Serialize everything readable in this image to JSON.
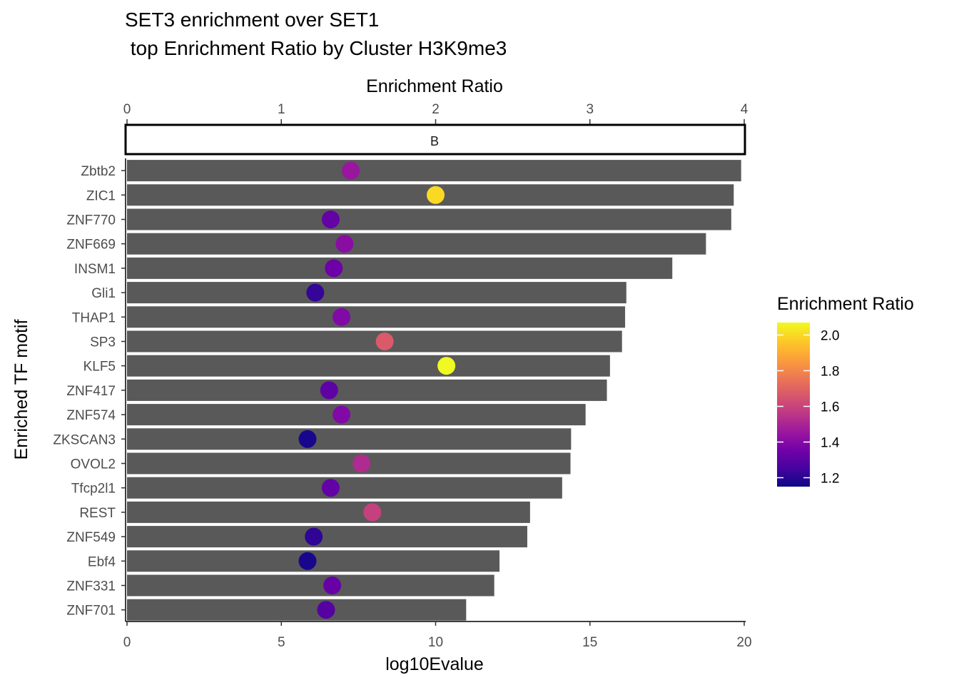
{
  "chart_data": {
    "type": "bar",
    "title_line1": "SET3 enrichment over SET1",
    "title_line2": " top Enrichment Ratio by Cluster H3K9me3",
    "facet_label": "B",
    "x_bottom": {
      "label": "log10Evalue",
      "range": [
        0,
        20
      ],
      "ticks": [
        {
          "value": 0,
          "label": "0"
        },
        {
          "value": 5,
          "label": "5"
        },
        {
          "value": 10,
          "label": "10"
        },
        {
          "value": 15,
          "label": "15"
        },
        {
          "value": 20,
          "label": "20"
        }
      ]
    },
    "x_top": {
      "label": "Enrichment Ratio",
      "range": [
        0,
        4
      ],
      "ticks": [
        {
          "value": 0,
          "label": "0"
        },
        {
          "value": 1,
          "label": "1"
        },
        {
          "value": 2,
          "label": "2"
        },
        {
          "value": 3,
          "label": "3"
        },
        {
          "value": 4,
          "label": "4"
        }
      ]
    },
    "ylabel": "Enriched TF motif",
    "bar_color": "#595959",
    "series": [
      {
        "name": "log10Evalue",
        "values": [
          19.9,
          19.66,
          19.58,
          18.76,
          17.67,
          16.18,
          16.14,
          16.04,
          15.65,
          15.55,
          14.86,
          14.39,
          14.37,
          14.1,
          13.06,
          12.97,
          12.07,
          11.9,
          10.99
        ]
      },
      {
        "name": "Enrichment Ratio",
        "values": [
          1.45,
          2.0,
          1.32,
          1.41,
          1.34,
          1.22,
          1.39,
          1.67,
          2.07,
          1.31,
          1.39,
          1.17,
          1.52,
          1.32,
          1.59,
          1.21,
          1.17,
          1.33,
          1.29
        ]
      }
    ],
    "categories": [
      "Zbtb2",
      "ZIC1",
      "ZNF770",
      "ZNF669",
      "INSM1",
      "Gli1",
      "THAP1",
      "SP3",
      "KLF5",
      "ZNF417",
      "ZNF574",
      "ZKSCAN3",
      "OVOL2",
      "Tfcp2l1",
      "REST",
      "ZNF549",
      "Ebf4",
      "ZNF331",
      "ZNF701"
    ],
    "legend": {
      "title": "Enrichment Ratio",
      "range": [
        1.15,
        2.07
      ],
      "ticks": [
        {
          "value": 1.2,
          "label": "1.2"
        },
        {
          "value": 1.4,
          "label": "1.4"
        },
        {
          "value": 1.6,
          "label": "1.6"
        },
        {
          "value": 1.8,
          "label": "1.8"
        },
        {
          "value": 2.0,
          "label": "2.0"
        }
      ],
      "colors": [
        "#0d0887",
        "#46039f",
        "#7201a8",
        "#9c179e",
        "#bd3786",
        "#d8576b",
        "#ed7953",
        "#fb9f3a",
        "#fdca26",
        "#f0f921"
      ]
    }
  }
}
